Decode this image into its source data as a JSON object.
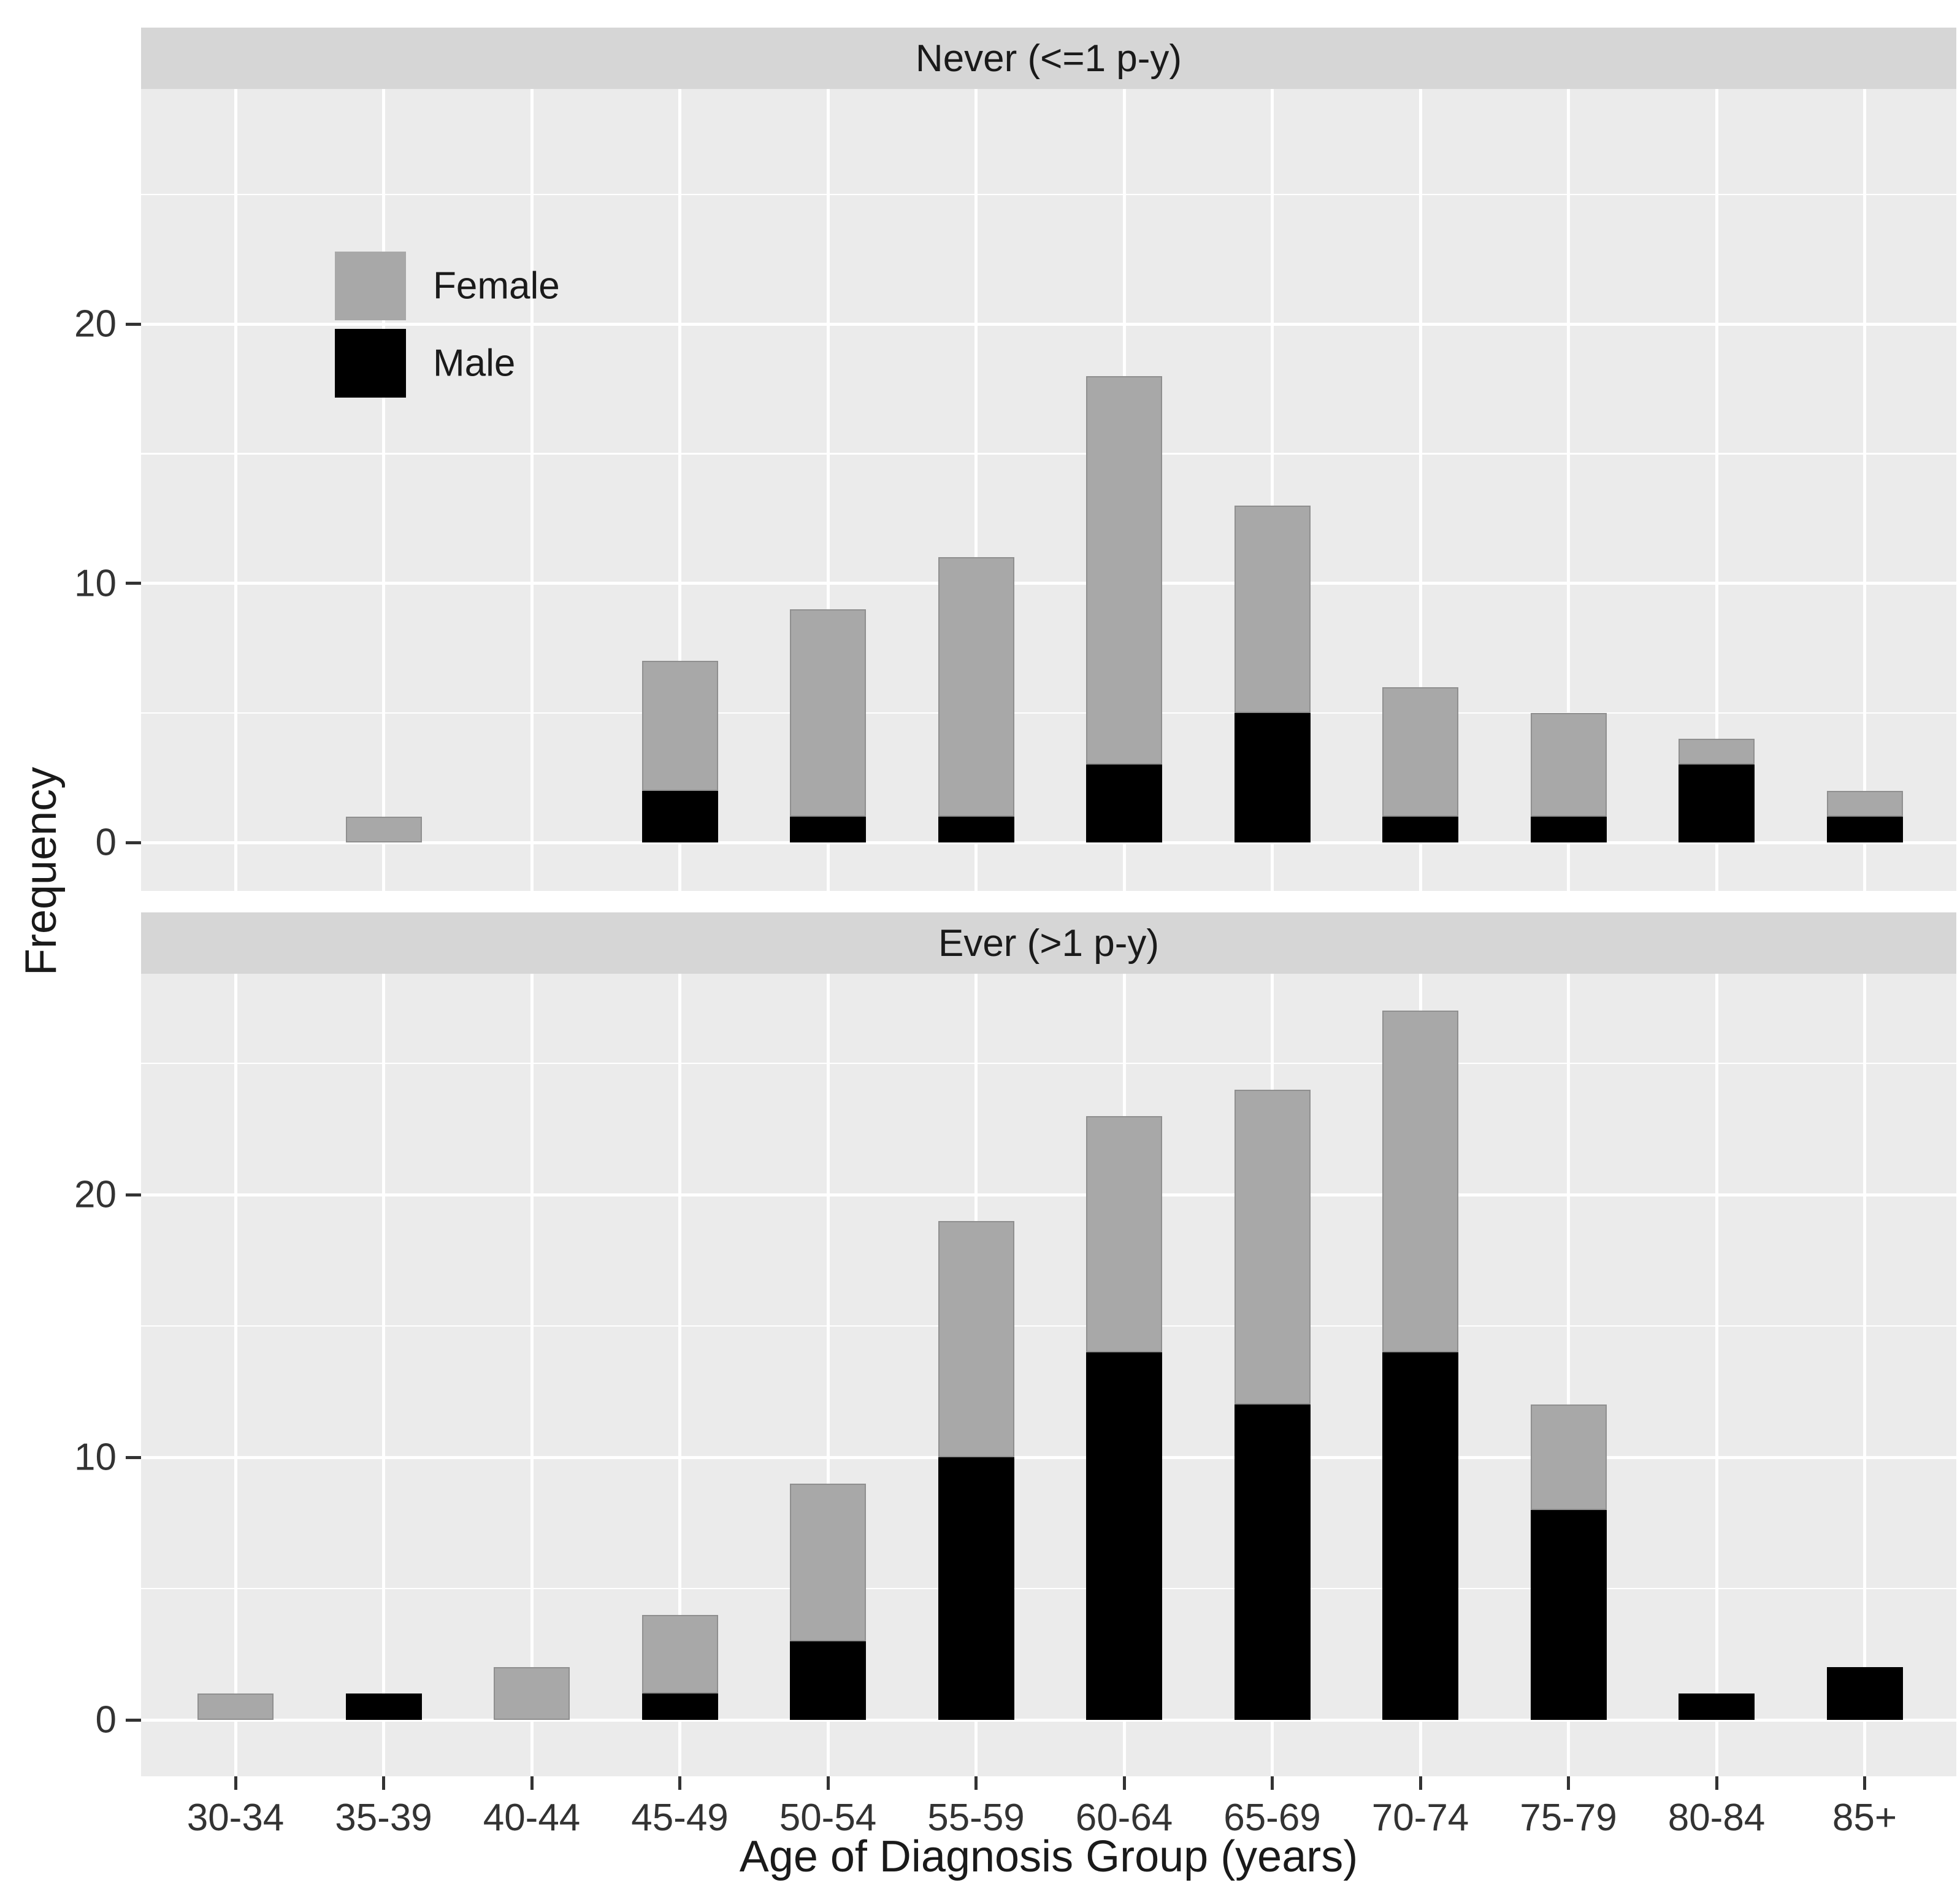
{
  "colors": {
    "female": "#a8a8a8",
    "female_border": "#8f8f8f",
    "male": "#000000",
    "panel_bg": "#ebebeb",
    "strip_bg": "#d6d6d6",
    "grid": "#ffffff",
    "text": "#1a1a1a",
    "tick_text": "#333333"
  },
  "chart_data": {
    "type": "bar",
    "stacked": true,
    "title": "",
    "xlabel": "Age of Diagnosis Group (years)",
    "ylabel": "Frequency",
    "categories": [
      "30-34",
      "35-39",
      "40-44",
      "45-49",
      "50-54",
      "55-59",
      "60-64",
      "65-69",
      "70-74",
      "75-79",
      "80-84",
      "85+"
    ],
    "y_ticks": [
      0,
      10,
      20
    ],
    "y_tick_labels": [
      "0",
      "10",
      "20"
    ],
    "y_minor_ticks": [
      5,
      15,
      25
    ],
    "ylim": [
      0,
      28.7
    ],
    "grid": true,
    "legend_position": "inside-top-left",
    "legend_entries": [
      {
        "label": "Female",
        "color": "#a8a8a8"
      },
      {
        "label": "Male",
        "color": "#000000"
      }
    ],
    "facets": [
      {
        "title": "Never (<=1 p-y)",
        "series": [
          {
            "name": "Male",
            "color": "#000000",
            "values": [
              0,
              0,
              0,
              2,
              1,
              1,
              3,
              5,
              1,
              1,
              3,
              1
            ]
          },
          {
            "name": "Female",
            "color": "#a8a8a8",
            "values": [
              0,
              1,
              0,
              5,
              8,
              10,
              15,
              8,
              5,
              4,
              1,
              1
            ]
          }
        ],
        "totals": [
          0,
          1,
          0,
          7,
          9,
          11,
          18,
          13,
          6,
          5,
          4,
          2
        ]
      },
      {
        "title": "Ever (>1 p-y)",
        "series": [
          {
            "name": "Male",
            "color": "#000000",
            "values": [
              0,
              1,
              0,
              1,
              3,
              10,
              14,
              12,
              14,
              8,
              1,
              2
            ]
          },
          {
            "name": "Female",
            "color": "#a8a8a8",
            "values": [
              1,
              0,
              2,
              3,
              6,
              9,
              9,
              12,
              13,
              4,
              0,
              0
            ]
          }
        ],
        "totals": [
          1,
          1,
          2,
          4,
          9,
          19,
          23,
          24,
          27,
          12,
          1,
          2
        ]
      }
    ]
  }
}
